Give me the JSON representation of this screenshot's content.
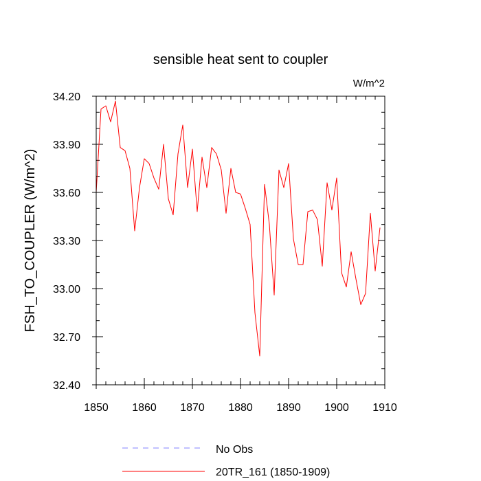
{
  "chart_data": {
    "type": "line",
    "title": "sensible heat sent to coupler",
    "units": "W/m^2",
    "ylabel": "FSH_TO_COUPLER  (W/m^2)",
    "xlabel": "",
    "xlim": [
      1850,
      1910
    ],
    "ylim": [
      32.4,
      34.2
    ],
    "x_ticks": [
      1850,
      1860,
      1870,
      1880,
      1890,
      1900,
      1910
    ],
    "y_ticks": [
      32.4,
      32.7,
      33.0,
      33.3,
      33.6,
      33.9,
      34.2
    ],
    "y_tick_labels": [
      "32.40",
      "32.70",
      "33.00",
      "33.30",
      "33.60",
      "33.90",
      "34.20"
    ],
    "x_tick_labels": [
      "1850",
      "1860",
      "1870",
      "1880",
      "1890",
      "1900",
      "1910"
    ],
    "colors": {
      "model": "#ff0000",
      "obs": "#8080ff"
    },
    "legend": {
      "placement": "bottom",
      "entries": [
        {
          "label": "No Obs",
          "style": "dashed",
          "color": "#8080ff"
        },
        {
          "label": "20TR_161 (1850-1909)",
          "style": "solid",
          "color": "#ff0000"
        }
      ]
    },
    "series": [
      {
        "name": "20TR_161 (1850-1909)",
        "x": [
          1850,
          1851,
          1852,
          1853,
          1854,
          1855,
          1856,
          1857,
          1858,
          1859,
          1860,
          1861,
          1862,
          1863,
          1864,
          1865,
          1866,
          1867,
          1868,
          1869,
          1870,
          1871,
          1872,
          1873,
          1874,
          1875,
          1876,
          1877,
          1878,
          1879,
          1880,
          1881,
          1882,
          1883,
          1884,
          1885,
          1886,
          1887,
          1888,
          1889,
          1890,
          1891,
          1892,
          1893,
          1894,
          1895,
          1896,
          1897,
          1898,
          1899,
          1900,
          1901,
          1902,
          1903,
          1904,
          1905,
          1906,
          1907,
          1908,
          1909
        ],
        "values": [
          33.6,
          34.12,
          34.14,
          34.04,
          34.17,
          33.88,
          33.86,
          33.75,
          33.36,
          33.63,
          33.81,
          33.78,
          33.69,
          33.62,
          33.9,
          33.56,
          33.46,
          33.84,
          34.02,
          33.63,
          33.87,
          33.48,
          33.82,
          33.63,
          33.88,
          33.84,
          33.74,
          33.47,
          33.75,
          33.6,
          33.59,
          33.5,
          33.4,
          32.85,
          32.58,
          33.65,
          33.4,
          32.96,
          33.74,
          33.63,
          33.78,
          33.31,
          33.15,
          33.15,
          33.48,
          33.49,
          33.43,
          33.14,
          33.66,
          33.49,
          33.69,
          33.1,
          33.01,
          33.23,
          33.06,
          32.9,
          32.97,
          33.47,
          33.11,
          33.38
        ]
      }
    ]
  }
}
